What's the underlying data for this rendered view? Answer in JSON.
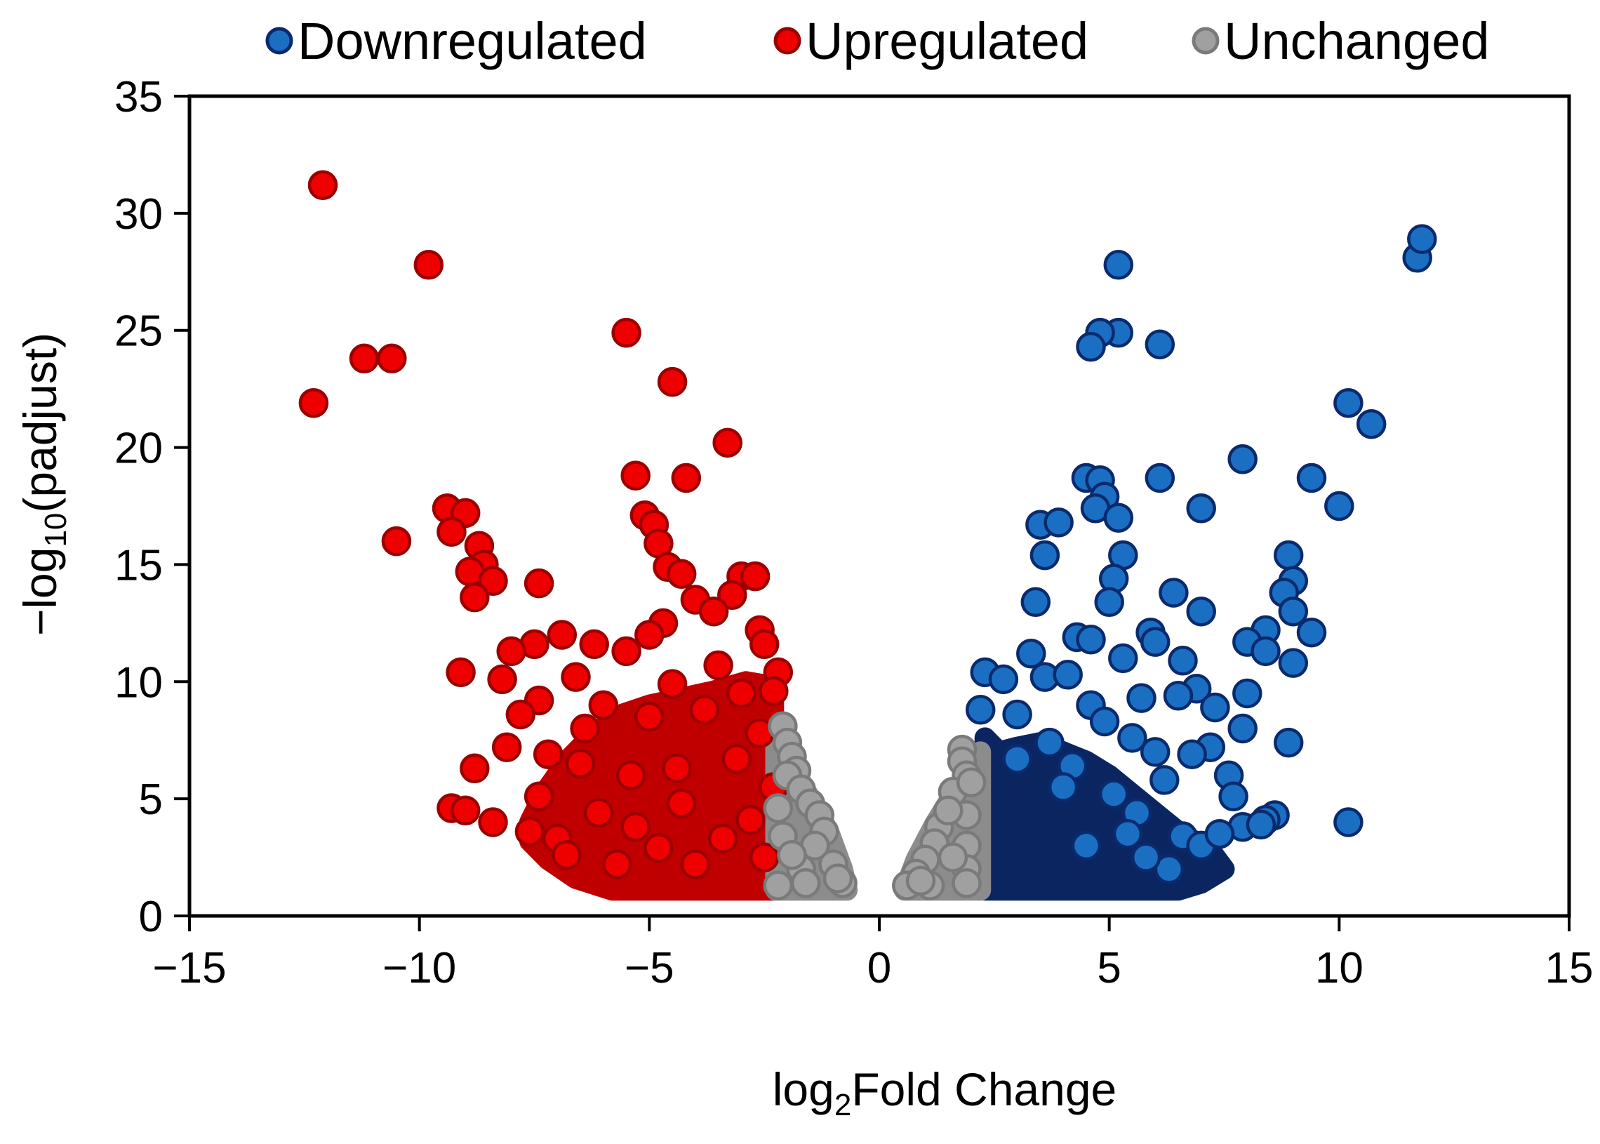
{
  "chart_data": {
    "type": "scatter",
    "xlabel_prefix": "log",
    "xlabel_sub": "2",
    "xlabel_suffix": "Fold Change",
    "ylabel_prefix": "−log",
    "ylabel_sub": "10",
    "ylabel_suffix": "(padjust)",
    "xlim": [
      -15,
      15
    ],
    "ylim": [
      0,
      35
    ],
    "x_ticks": [
      -15,
      -10,
      -5,
      0,
      5,
      10,
      15
    ],
    "x_tick_labels": [
      "−15",
      "−10",
      "−5",
      "0",
      "5",
      "10",
      "15"
    ],
    "y_ticks": [
      0,
      5,
      10,
      15,
      20,
      25,
      30,
      35
    ],
    "y_tick_labels": [
      "0",
      "5",
      "10",
      "15",
      "20",
      "25",
      "30",
      "35"
    ],
    "grid": false,
    "legend_position": "top",
    "series": [
      {
        "name": "Downregulated",
        "fill": "#1b6fc2",
        "stroke": "#0a2a6e",
        "dense_fill": "#0b2561",
        "points": [
          [
            11.7,
            28.1
          ],
          [
            11.8,
            28.9
          ],
          [
            5.2,
            27.8
          ],
          [
            5.2,
            24.9
          ],
          [
            4.8,
            24.9
          ],
          [
            4.6,
            24.3
          ],
          [
            6.1,
            24.4
          ],
          [
            10.2,
            21.9
          ],
          [
            10.7,
            21.0
          ],
          [
            7.9,
            19.5
          ],
          [
            6.1,
            18.7
          ],
          [
            9.4,
            18.7
          ],
          [
            4.5,
            18.7
          ],
          [
            4.8,
            18.6
          ],
          [
            4.9,
            17.9
          ],
          [
            4.7,
            17.4
          ],
          [
            7.0,
            17.4
          ],
          [
            10.0,
            17.5
          ],
          [
            5.2,
            17.0
          ],
          [
            3.5,
            16.7
          ],
          [
            3.9,
            16.8
          ],
          [
            8.9,
            15.4
          ],
          [
            5.3,
            15.4
          ],
          [
            3.6,
            15.4
          ],
          [
            5.1,
            14.4
          ],
          [
            9.0,
            14.3
          ],
          [
            8.8,
            13.8
          ],
          [
            5.0,
            13.4
          ],
          [
            6.4,
            13.8
          ],
          [
            3.4,
            13.4
          ],
          [
            9.0,
            13.0
          ],
          [
            7.0,
            13.0
          ],
          [
            8.4,
            12.2
          ],
          [
            9.4,
            12.1
          ],
          [
            5.9,
            12.1
          ],
          [
            4.3,
            11.9
          ],
          [
            4.6,
            11.8
          ],
          [
            6.0,
            11.7
          ],
          [
            8.0,
            11.7
          ],
          [
            8.4,
            11.3
          ],
          [
            9.0,
            10.8
          ],
          [
            6.6,
            10.9
          ],
          [
            5.3,
            11.0
          ],
          [
            3.3,
            11.2
          ],
          [
            2.3,
            10.4
          ],
          [
            2.7,
            10.1
          ],
          [
            3.6,
            10.2
          ],
          [
            4.1,
            10.3
          ],
          [
            8.0,
            9.5
          ],
          [
            6.9,
            9.7
          ],
          [
            4.6,
            9.0
          ],
          [
            5.7,
            9.3
          ],
          [
            6.5,
            9.4
          ],
          [
            7.3,
            8.9
          ],
          [
            2.2,
            8.8
          ],
          [
            8.9,
            7.4
          ],
          [
            7.9,
            8.0
          ],
          [
            7.2,
            7.2
          ],
          [
            3.0,
            8.6
          ],
          [
            4.9,
            8.3
          ],
          [
            5.5,
            7.6
          ],
          [
            6.0,
            7.0
          ],
          [
            6.8,
            6.9
          ],
          [
            7.6,
            6.0
          ],
          [
            7.7,
            5.1
          ],
          [
            8.6,
            4.3
          ],
          [
            10.2,
            4.0
          ],
          [
            8.4,
            4.1
          ],
          [
            7.9,
            3.8
          ],
          [
            8.3,
            3.9
          ],
          [
            6.3,
            2.0
          ],
          [
            6.6,
            3.4
          ],
          [
            7.0,
            3.0
          ],
          [
            7.4,
            3.5
          ],
          [
            5.6,
            4.4
          ],
          [
            6.2,
            5.8
          ],
          [
            5.1,
            5.2
          ],
          [
            4.2,
            6.4
          ],
          [
            3.7,
            7.4
          ],
          [
            4.0,
            5.5
          ],
          [
            3.0,
            6.7
          ],
          [
            5.4,
            3.5
          ],
          [
            5.8,
            2.5
          ],
          [
            4.5,
            3.0
          ]
        ]
      },
      {
        "name": "Upregulated",
        "fill": "#ee0000",
        "stroke": "#9b0000",
        "dense_fill": "#c00000",
        "points": [
          [
            -12.1,
            31.2
          ],
          [
            -9.8,
            27.8
          ],
          [
            -11.2,
            23.8
          ],
          [
            -10.6,
            23.8
          ],
          [
            -12.3,
            21.9
          ],
          [
            -5.5,
            24.9
          ],
          [
            -4.5,
            22.8
          ],
          [
            -3.3,
            20.2
          ],
          [
            -5.3,
            18.8
          ],
          [
            -4.2,
            18.7
          ],
          [
            -10.5,
            16.0
          ],
          [
            -9.4,
            17.4
          ],
          [
            -9.0,
            17.2
          ],
          [
            -9.3,
            16.4
          ],
          [
            -8.7,
            15.8
          ],
          [
            -8.6,
            15.0
          ],
          [
            -8.9,
            14.7
          ],
          [
            -8.4,
            14.3
          ],
          [
            -8.8,
            13.6
          ],
          [
            -7.4,
            14.2
          ],
          [
            -5.1,
            17.1
          ],
          [
            -4.9,
            16.7
          ],
          [
            -4.8,
            15.9
          ],
          [
            -4.6,
            14.9
          ],
          [
            -4.3,
            14.6
          ],
          [
            -3.0,
            14.5
          ],
          [
            -2.7,
            14.5
          ],
          [
            -3.2,
            13.7
          ],
          [
            -4.0,
            13.5
          ],
          [
            -3.6,
            13.0
          ],
          [
            -2.6,
            12.2
          ],
          [
            -4.7,
            12.5
          ],
          [
            -5.0,
            12.0
          ],
          [
            -6.2,
            11.6
          ],
          [
            -6.9,
            12.0
          ],
          [
            -7.5,
            11.6
          ],
          [
            -8.0,
            11.3
          ],
          [
            -2.5,
            11.6
          ],
          [
            -2.2,
            10.4
          ],
          [
            -2.3,
            9.6
          ],
          [
            -3.5,
            10.7
          ],
          [
            -4.5,
            9.9
          ],
          [
            -5.5,
            11.3
          ],
          [
            -6.6,
            10.2
          ],
          [
            -9.1,
            10.4
          ],
          [
            -8.2,
            10.1
          ],
          [
            -7.4,
            9.2
          ],
          [
            -6.0,
            9.0
          ],
          [
            -5.0,
            8.5
          ],
          [
            -3.8,
            8.8
          ],
          [
            -8.1,
            7.2
          ],
          [
            -8.8,
            6.3
          ],
          [
            -7.2,
            6.9
          ],
          [
            -6.5,
            6.5
          ],
          [
            -5.4,
            6.0
          ],
          [
            -4.4,
            6.3
          ],
          [
            -3.1,
            6.7
          ],
          [
            -9.3,
            4.6
          ],
          [
            -9.0,
            4.5
          ],
          [
            -8.4,
            4.0
          ],
          [
            -7.6,
            3.6
          ],
          [
            -7.0,
            3.3
          ],
          [
            -6.8,
            2.6
          ],
          [
            -7.4,
            5.1
          ],
          [
            -6.1,
            4.4
          ],
          [
            -5.3,
            3.8
          ],
          [
            -4.8,
            2.9
          ],
          [
            -4.0,
            2.2
          ],
          [
            -3.4,
            3.3
          ],
          [
            -2.8,
            4.1
          ],
          [
            -2.5,
            2.5
          ],
          [
            -2.3,
            5.5
          ],
          [
            -2.6,
            7.8
          ],
          [
            -3.0,
            9.5
          ],
          [
            -6.4,
            8.0
          ],
          [
            -7.8,
            8.6
          ],
          [
            -5.7,
            2.2
          ],
          [
            -4.3,
            4.8
          ]
        ]
      },
      {
        "name": "Unchanged",
        "fill": "#a0a0a0",
        "stroke": "#7a7a7a",
        "dense_fill": "#8c8c8c",
        "points": [
          [
            -2.1,
            8.1
          ],
          [
            -2.0,
            7.4
          ],
          [
            -1.9,
            6.8
          ],
          [
            -1.8,
            6.2
          ],
          [
            -2.0,
            6.0
          ],
          [
            -1.7,
            5.4
          ],
          [
            -1.5,
            4.8
          ],
          [
            -1.3,
            4.3
          ],
          [
            -1.2,
            3.6
          ],
          [
            -1.4,
            3.0
          ],
          [
            -1.0,
            2.2
          ],
          [
            -0.8,
            1.4
          ],
          [
            -1.7,
            2.0
          ],
          [
            -2.1,
            3.4
          ],
          [
            -2.2,
            4.6
          ],
          [
            -1.6,
            1.4
          ],
          [
            -2.2,
            1.3
          ],
          [
            -0.9,
            1.6
          ],
          [
            -1.9,
            2.6
          ],
          [
            1.8,
            7.1
          ],
          [
            1.8,
            6.6
          ],
          [
            1.9,
            6.0
          ],
          [
            1.6,
            5.3
          ],
          [
            1.9,
            4.3
          ],
          [
            1.3,
            3.8
          ],
          [
            1.2,
            3.1
          ],
          [
            1.0,
            2.4
          ],
          [
            0.8,
            1.8
          ],
          [
            0.6,
            1.3
          ],
          [
            1.9,
            3.0
          ],
          [
            1.9,
            2.0
          ],
          [
            1.9,
            1.4
          ],
          [
            1.5,
            4.5
          ],
          [
            1.1,
            1.3
          ],
          [
            1.6,
            2.5
          ],
          [
            2.0,
            5.7
          ],
          [
            0.9,
            1.5
          ]
        ]
      }
    ],
    "dense_regions": [
      {
        "series": 0,
        "poly": [
          [
            2.3,
            7.6
          ],
          [
            2.6,
            7.0
          ],
          [
            3.0,
            7.2
          ],
          [
            3.5,
            7.4
          ],
          [
            4.0,
            7.0
          ],
          [
            4.5,
            6.6
          ],
          [
            5.0,
            6.0
          ],
          [
            5.5,
            5.2
          ],
          [
            6.0,
            4.4
          ],
          [
            6.5,
            3.6
          ],
          [
            7.2,
            2.8
          ],
          [
            7.5,
            2.0
          ],
          [
            7.0,
            1.4
          ],
          [
            6.5,
            1.1
          ],
          [
            2.3,
            1.1
          ]
        ]
      },
      {
        "series": 1,
        "poly": [
          [
            -2.3,
            9.8
          ],
          [
            -2.9,
            10.0
          ],
          [
            -3.6,
            9.6
          ],
          [
            -4.3,
            9.3
          ],
          [
            -5.0,
            9.0
          ],
          [
            -5.6,
            8.6
          ],
          [
            -6.2,
            7.8
          ],
          [
            -6.8,
            6.6
          ],
          [
            -7.3,
            5.2
          ],
          [
            -7.6,
            4.0
          ],
          [
            -7.6,
            3.2
          ],
          [
            -7.2,
            2.4
          ],
          [
            -6.6,
            1.6
          ],
          [
            -5.8,
            1.1
          ],
          [
            -2.3,
            1.1
          ]
        ]
      },
      {
        "series": 2,
        "poly": [
          [
            -2.25,
            7.6
          ],
          [
            -1.9,
            6.4
          ],
          [
            -1.5,
            5.0
          ],
          [
            -1.1,
            3.6
          ],
          [
            -0.8,
            2.0
          ],
          [
            -0.7,
            1.1
          ],
          [
            -2.25,
            1.1
          ]
        ]
      },
      {
        "series": 2,
        "poly": [
          [
            2.2,
            7.0
          ],
          [
            1.7,
            5.5
          ],
          [
            1.2,
            3.9
          ],
          [
            0.8,
            2.4
          ],
          [
            0.55,
            1.1
          ],
          [
            2.2,
            1.1
          ]
        ]
      }
    ]
  }
}
